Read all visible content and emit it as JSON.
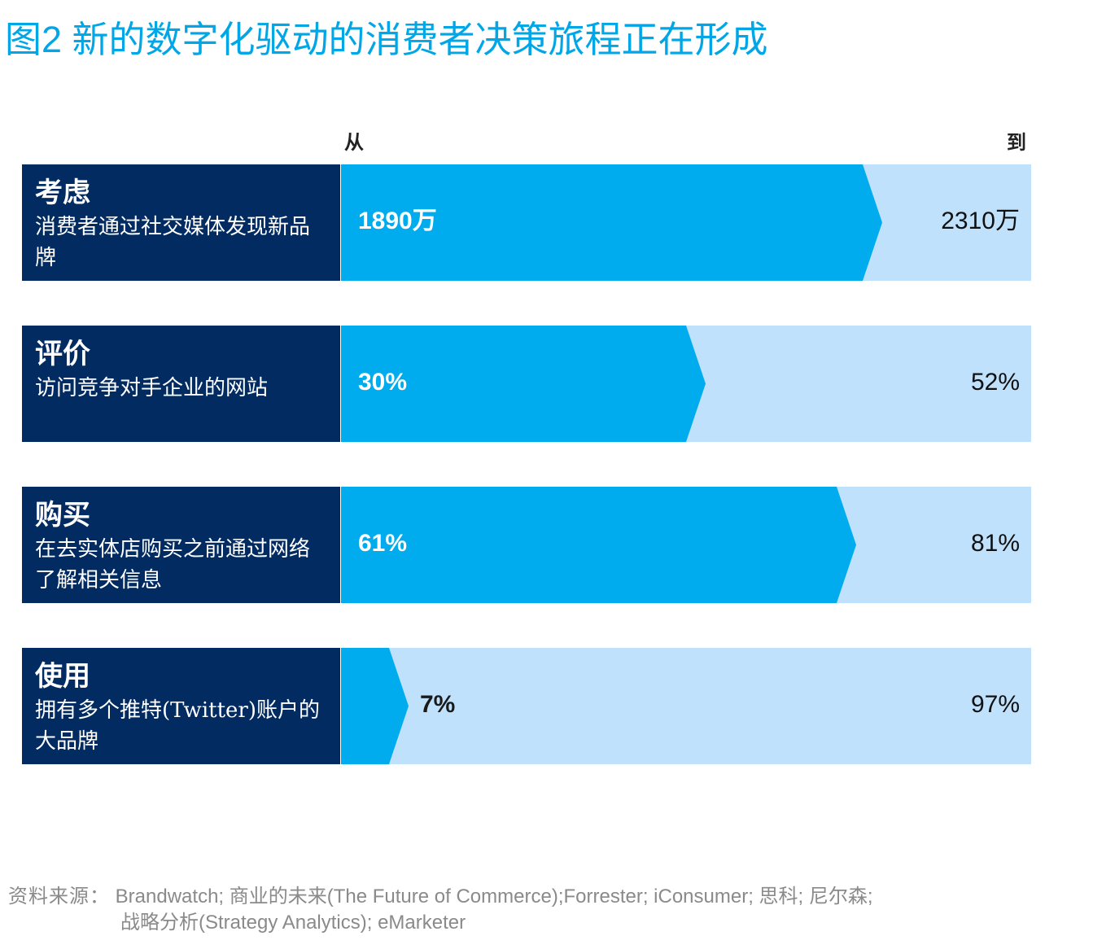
{
  "title": "图2 新的数字化驱动的消费者决策旅程正在形成",
  "headers": {
    "from": "从",
    "to": "到"
  },
  "chart_data": {
    "type": "bar",
    "title": "图2 新的数字化驱动的消费者决策旅程正在形成",
    "categories": [
      "考虑",
      "评价",
      "购买",
      "使用"
    ],
    "series": [
      {
        "name": "从",
        "values": [
          1890,
          30,
          61,
          7
        ]
      },
      {
        "name": "到",
        "values": [
          2310,
          52,
          81,
          97
        ]
      }
    ],
    "scale_max": [
      2500,
      60,
      85,
      100
    ],
    "rows": [
      {
        "title": "考虑",
        "desc": "消费者通过社交媒体发现新品牌",
        "from_label": "1890万",
        "to_label": "2310万"
      },
      {
        "title": "评价",
        "desc": "访问竞争对手企业的网站",
        "from_label": "30%",
        "to_label": "52%"
      },
      {
        "title": "购买",
        "desc": "在去实体店购买之前通过网络了解相关信息",
        "from_label": "61%",
        "to_label": "81%"
      },
      {
        "title": "使用",
        "desc": "拥有多个推特(Twitter)账户的大品牌",
        "from_label": "7%",
        "to_label": "97%"
      }
    ]
  },
  "colors": {
    "label_bg": "#012b61",
    "from_bar": "#00acee",
    "to_bar": "#c0e1fb",
    "title": "#00a6e6"
  },
  "source": {
    "label": "资料来源：",
    "line1": "Brandwatch; 商业的未来(The Future of Commerce);Forrester; iConsumer; 思科; 尼尔森;",
    "line2": "战略分析(Strategy Analytics); eMarketer"
  }
}
